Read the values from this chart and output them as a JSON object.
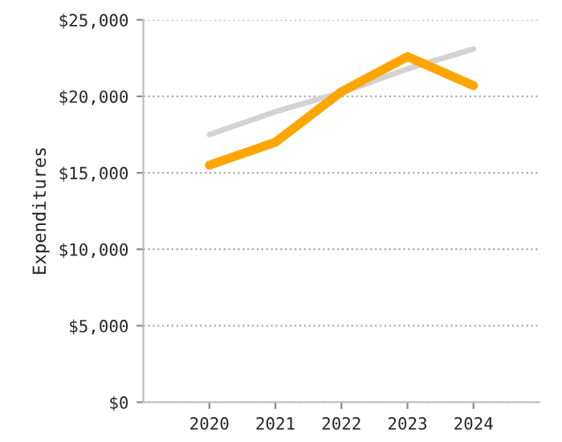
{
  "chart_data": {
    "type": "line",
    "ylabel": "Expenditures",
    "categories": [
      "2020",
      "2021",
      "2022",
      "2023",
      "2024"
    ],
    "series": [
      {
        "color": "#d3d3d3",
        "values": [
          17500,
          19000,
          20250,
          21800,
          23100
        ]
      },
      {
        "color": "#ffa500",
        "values": [
          15500,
          17000,
          20300,
          22600,
          20700
        ]
      }
    ],
    "ylim": [
      0,
      25000
    ],
    "yticks": [
      {
        "value": 0,
        "label": "$0"
      },
      {
        "value": 5000,
        "label": "$5,000"
      },
      {
        "value": 10000,
        "label": "$10,000"
      },
      {
        "value": 15000,
        "label": "$15,000"
      },
      {
        "value": 20000,
        "label": "$20,000"
      },
      {
        "value": 25000,
        "label": "$25,000"
      }
    ],
    "grid": "y",
    "legend": false,
    "marker": "none",
    "line_style": "solid"
  }
}
